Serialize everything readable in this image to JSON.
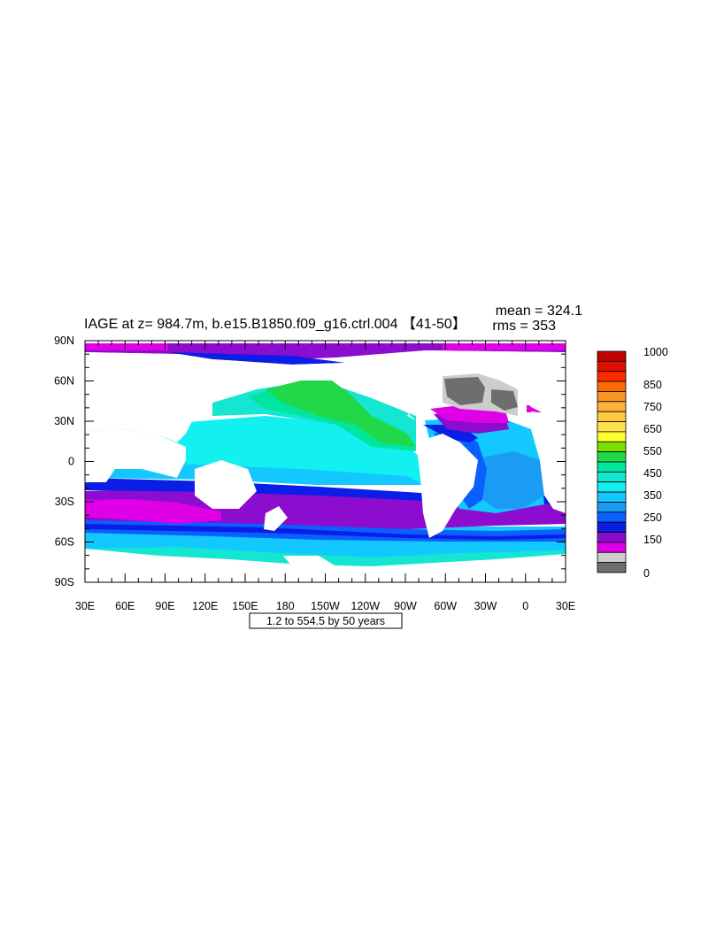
{
  "title": "IAGE at z= 984.7m, b.e15.B1850.f09_g16.ctrl.004 【41-50】",
  "stats": {
    "mean": "mean = 324.1",
    "rms": "rms = 353"
  },
  "contour_note": "1.2 to 554.5 by 50 years",
  "x_ticks": [
    "30E",
    "60E",
    "90E",
    "120E",
    "150E",
    "180",
    "150W",
    "120W",
    "90W",
    "60W",
    "30W",
    "0",
    "30E"
  ],
  "y_ticks": [
    "90N",
    "60N",
    "30N",
    "0",
    "30S",
    "60S",
    "90S"
  ],
  "colorbar": {
    "labels": [
      "1000",
      "850",
      "750",
      "650",
      "550",
      "450",
      "350",
      "250",
      "150",
      "0"
    ],
    "colors": [
      "#c40000",
      "#e01000",
      "#ff2a00",
      "#ff6a00",
      "#f59524",
      "#ffb03a",
      "#ffc840",
      "#ffe24a",
      "#ffff30",
      "#7ae000",
      "#20d848",
      "#00e69c",
      "#14e6d2",
      "#12f0f0",
      "#12c8ff",
      "#1a9cf4",
      "#0a60ff",
      "#0a1ee6",
      "#8c0cd0",
      "#e000e8",
      "#cccccc",
      "#6e6e6e"
    ]
  },
  "chart_data": {
    "type": "heatmap",
    "variable": "IAGE",
    "depth": "984.7m",
    "case": "b.e15.B1850.f09_g16.ctrl.004",
    "years": "41-50",
    "mean": 324.1,
    "rms": 353,
    "contour_min": 1.2,
    "contour_max": 554.5,
    "contour_interval": 50,
    "lon_range": [
      30,
      390
    ],
    "lat_range": [
      -90,
      90
    ],
    "colorbar_ticks": [
      1000,
      850,
      750,
      650,
      550,
      450,
      350,
      250,
      150,
      0
    ]
  }
}
